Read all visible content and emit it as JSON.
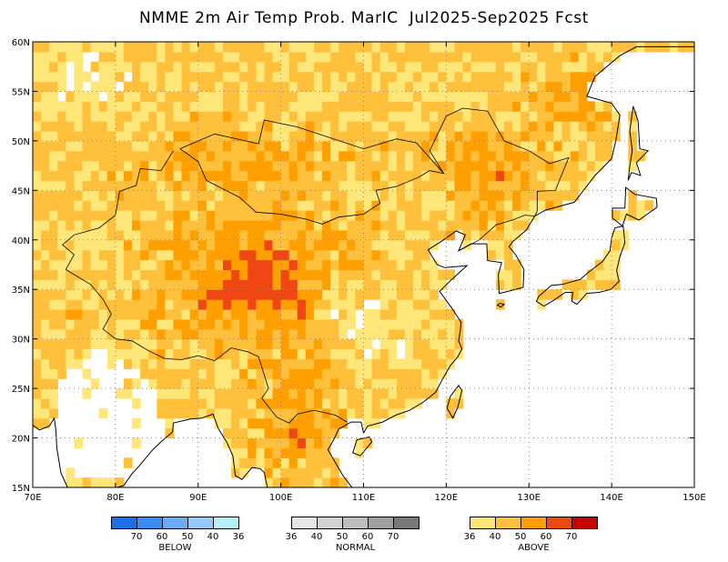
{
  "title": "NMME 2m Air Temp Prob. MarIC  Jul2025-Sep2025 Fcst",
  "map": {
    "lon_range": [
      70,
      150
    ],
    "lat_range": [
      15,
      60
    ],
    "x_ticks": [
      "70E",
      "80E",
      "90E",
      "100E",
      "110E",
      "120E",
      "130E",
      "140E",
      "150E"
    ],
    "y_ticks": [
      "15N",
      "20N",
      "25N",
      "30N",
      "35N",
      "40N",
      "45N",
      "50N",
      "55N",
      "60N"
    ],
    "ocean_color": "#ffffff",
    "gridlines": "dotted"
  },
  "legend": {
    "below": {
      "name": "BELOW",
      "colors": [
        "#1e6ee6",
        "#3c8cf0",
        "#6eaaf5",
        "#96c8fa",
        "#b4f0fa"
      ],
      "labels": [
        "70",
        "60",
        "50",
        "40",
        "36"
      ]
    },
    "normal": {
      "name": "NORMAL",
      "colors": [
        "#e6e6e6",
        "#d2d2d2",
        "#bebebe",
        "#a0a0a0",
        "#787878"
      ],
      "labels": [
        "36",
        "40",
        "50",
        "60",
        "70"
      ]
    },
    "above": {
      "name": "ABOVE",
      "colors": [
        "#ffe678",
        "#ffc03c",
        "#ffa000",
        "#f04614",
        "#c80000"
      ],
      "labels": [
        "36",
        "40",
        "50",
        "60",
        "70"
      ]
    }
  }
}
